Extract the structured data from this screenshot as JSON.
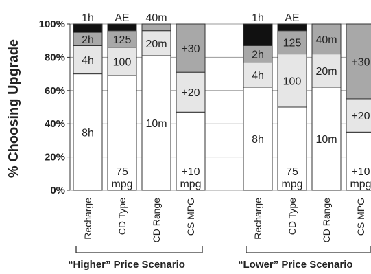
{
  "chart_data": {
    "type": "stacked-bar",
    "ylabel": "% Choosing Upgrade",
    "ylim": [
      0,
      100
    ],
    "yticks": [
      "0%",
      "20%",
      "40%",
      "60%",
      "80%",
      "100%"
    ],
    "grid": true,
    "groups": [
      {
        "label": "“Higher” Price Scenario",
        "categories": [
          {
            "label": "Recharge",
            "segments": [
              {
                "label": "8h",
                "value": 70,
                "color": "#ffffff"
              },
              {
                "label": "4h",
                "value": 17,
                "color": "#e6e6e6"
              },
              {
                "label": "2h",
                "value": 8,
                "color": "#a8a8a8"
              },
              {
                "label": "1h",
                "value": 5,
                "color": "#111111",
                "label_outside": true
              }
            ]
          },
          {
            "label": "CD Type",
            "segments": [
              {
                "label": "75\nmpg",
                "value": 69,
                "color": "#ffffff"
              },
              {
                "label": "100",
                "value": 17,
                "color": "#e6e6e6"
              },
              {
                "label": "125",
                "value": 10,
                "color": "#a8a8a8"
              },
              {
                "label": "AE",
                "value": 4,
                "color": "#111111",
                "label_outside": true
              }
            ]
          },
          {
            "label": "CD Range",
            "segments": [
              {
                "label": "10m",
                "value": 81,
                "color": "#ffffff"
              },
              {
                "label": "20m",
                "value": 15,
                "color": "#e6e6e6"
              },
              {
                "label": "40m",
                "value": 4,
                "color": "#a8a8a8",
                "label_outside": true
              }
            ]
          },
          {
            "label": "CS MPG",
            "segments": [
              {
                "label": "+10\nmpg",
                "value": 47,
                "color": "#ffffff"
              },
              {
                "label": "+20",
                "value": 24,
                "color": "#e6e6e6"
              },
              {
                "label": "+30",
                "value": 29,
                "color": "#a8a8a8"
              }
            ]
          }
        ]
      },
      {
        "label": "“Lower” Price Scenario",
        "categories": [
          {
            "label": "Recharge",
            "segments": [
              {
                "label": "8h",
                "value": 62,
                "color": "#ffffff"
              },
              {
                "label": "4h",
                "value": 15,
                "color": "#e6e6e6"
              },
              {
                "label": "2h",
                "value": 10,
                "color": "#a8a8a8"
              },
              {
                "label": "1h",
                "value": 13,
                "color": "#111111",
                "label_outside": true
              }
            ]
          },
          {
            "label": "CD Type",
            "segments": [
              {
                "label": "75\nmpg",
                "value": 50,
                "color": "#ffffff"
              },
              {
                "label": "100",
                "value": 32,
                "color": "#e6e6e6"
              },
              {
                "label": "125",
                "value": 14,
                "color": "#a8a8a8"
              },
              {
                "label": "AE",
                "value": 4,
                "color": "#111111",
                "label_outside": true
              }
            ]
          },
          {
            "label": "CD Range",
            "segments": [
              {
                "label": "10m",
                "value": 62,
                "color": "#ffffff"
              },
              {
                "label": "20m",
                "value": 20,
                "color": "#e6e6e6"
              },
              {
                "label": "40m",
                "value": 18,
                "color": "#a8a8a8"
              }
            ]
          },
          {
            "label": "CS MPG",
            "segments": [
              {
                "label": "+10\nmpg",
                "value": 35,
                "color": "#ffffff"
              },
              {
                "label": "+20",
                "value": 20,
                "color": "#e6e6e6"
              },
              {
                "label": "+30",
                "value": 45,
                "color": "#a8a8a8"
              }
            ]
          }
        ]
      }
    ]
  }
}
